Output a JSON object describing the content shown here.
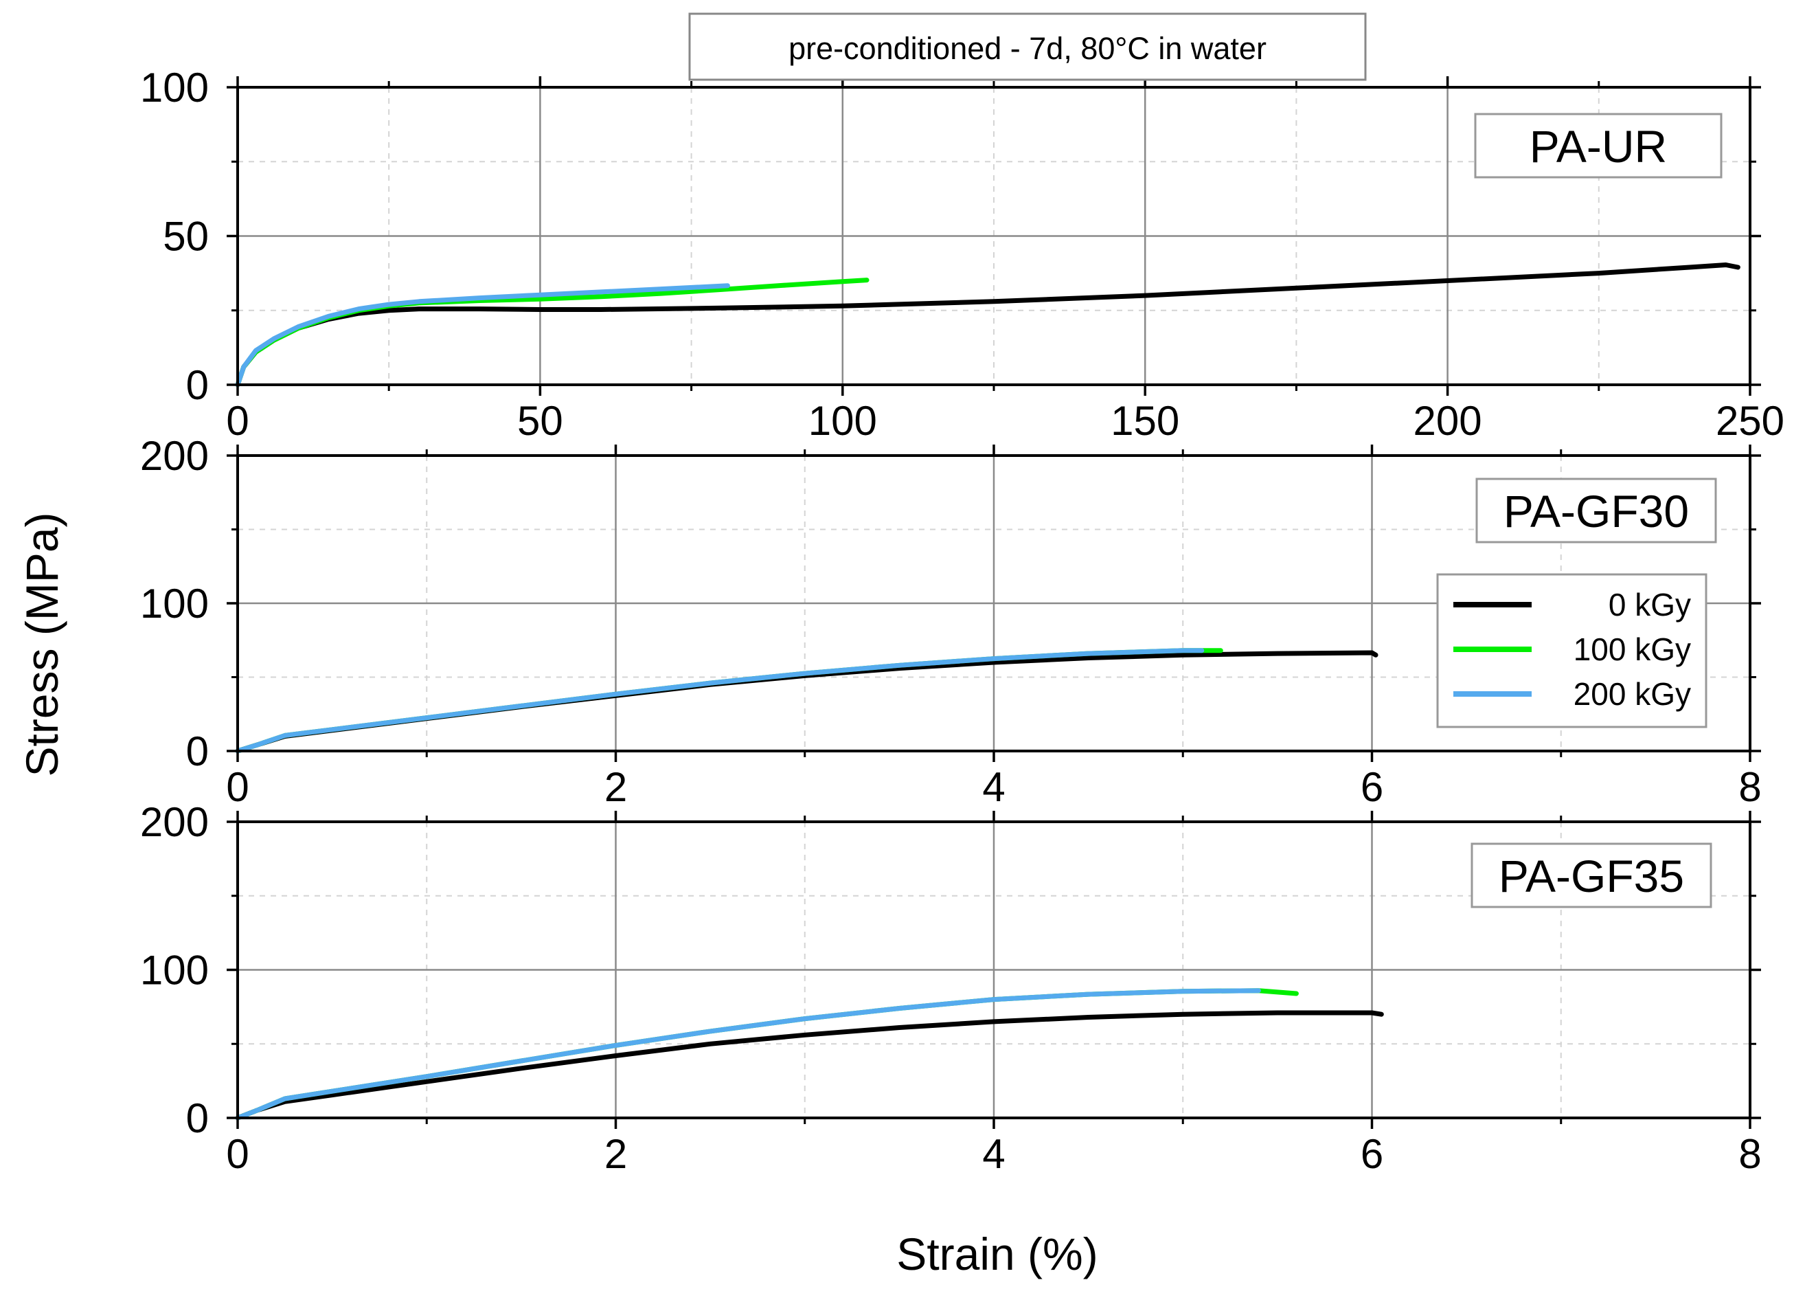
{
  "figure": {
    "header": "pre-conditioned - 7d, 80°C in water",
    "ylabel": "Stress (MPa)",
    "xlabel": "Strain (%)"
  },
  "legend": [
    {
      "label": "0 kGy",
      "color": "#000000"
    },
    {
      "label": "100 kGy",
      "color": "#00ee00"
    },
    {
      "label": "200 kGy",
      "color": "#55aaee"
    }
  ],
  "chart_data": [
    {
      "type": "line",
      "title": "PA-UR",
      "xlim": [
        0,
        250
      ],
      "ylim": [
        0,
        100
      ],
      "xticks": [
        0,
        50,
        100,
        150,
        200,
        250
      ],
      "yticks": [
        0,
        50,
        100
      ],
      "xtick_labels": [
        "0",
        "50",
        "100",
        "150",
        "200",
        "250"
      ],
      "ytick_labels": [
        "0",
        "50",
        "100"
      ],
      "series": [
        {
          "name": "0 kGy",
          "x": [
            0,
            1,
            3,
            6,
            10,
            15,
            20,
            25,
            30,
            40,
            50,
            60,
            80,
            100,
            125,
            150,
            175,
            200,
            225,
            240,
            246,
            248
          ],
          "y": [
            0,
            6,
            11,
            15,
            19,
            22,
            24,
            25,
            25.5,
            25.5,
            25.3,
            25.3,
            25.8,
            26.5,
            28,
            30,
            32.5,
            35,
            37.5,
            39.5,
            40.3,
            39.5
          ]
        },
        {
          "name": "100 kGy",
          "x": [
            0,
            1,
            3,
            6,
            10,
            15,
            20,
            25,
            30,
            40,
            50,
            60,
            70,
            80,
            90,
            100,
            104
          ],
          "y": [
            0,
            6,
            11,
            15,
            19,
            22.5,
            25,
            26.5,
            27.5,
            28.3,
            28.8,
            29.6,
            30.7,
            32,
            33.4,
            34.7,
            35.2
          ]
        },
        {
          "name": "200 kGy",
          "x": [
            0,
            1,
            3,
            6,
            10,
            15,
            20,
            25,
            30,
            40,
            50,
            60,
            70,
            81
          ],
          "y": [
            0,
            6,
            11.5,
            15.5,
            19.5,
            23,
            25.5,
            27,
            28,
            29.2,
            30.2,
            31.2,
            32.2,
            33.3
          ]
        }
      ]
    },
    {
      "type": "line",
      "title": "PA-GF30",
      "xlim": [
        0,
        8
      ],
      "ylim": [
        0,
        200
      ],
      "xticks": [
        0,
        2,
        4,
        6,
        8
      ],
      "yticks": [
        0,
        100,
        200
      ],
      "xtick_labels": [
        "0",
        "2",
        "4",
        "6",
        "8"
      ],
      "ytick_labels": [
        "0",
        "100",
        "200"
      ],
      "series": [
        {
          "name": "0 kGy",
          "x": [
            0,
            0.1,
            0.25,
            0.5,
            1,
            1.5,
            2,
            2.5,
            3,
            3.5,
            4,
            4.5,
            5,
            5.5,
            6,
            6.02
          ],
          "y": [
            0,
            4,
            10,
            14,
            22,
            30,
            37.5,
            45,
            51,
            56,
            60,
            63,
            65,
            66,
            66.5,
            65
          ]
        },
        {
          "name": "100 kGy",
          "x": [
            0,
            0.1,
            0.25,
            0.5,
            1,
            1.5,
            2,
            2.5,
            3,
            3.5,
            4,
            4.5,
            5,
            5.2
          ],
          "y": [
            0,
            4,
            10.5,
            14.5,
            22.5,
            30.5,
            38.5,
            46,
            52.5,
            58,
            62.5,
            66,
            68,
            68
          ]
        },
        {
          "name": "200 kGy",
          "x": [
            0,
            0.1,
            0.25,
            0.5,
            1,
            1.5,
            2,
            2.5,
            3,
            3.5,
            4,
            4.5,
            5,
            5.1
          ],
          "y": [
            0,
            4,
            10.5,
            14.5,
            22.5,
            30.5,
            38.5,
            46,
            52.5,
            58,
            62.5,
            66,
            68,
            68
          ]
        }
      ]
    },
    {
      "type": "line",
      "title": "PA-GF35",
      "xlim": [
        0,
        8
      ],
      "ylim": [
        0,
        200
      ],
      "xticks": [
        0,
        2,
        4,
        6,
        8
      ],
      "yticks": [
        0,
        100,
        200
      ],
      "xtick_labels": [
        "0",
        "2",
        "4",
        "6",
        "8"
      ],
      "ytick_labels": [
        "0",
        "100",
        "200"
      ],
      "series": [
        {
          "name": "0 kGy",
          "x": [
            0,
            0.1,
            0.25,
            0.5,
            1,
            1.5,
            2,
            2.5,
            3,
            3.5,
            4,
            4.5,
            5,
            5.5,
            6,
            6.05
          ],
          "y": [
            0,
            5,
            11,
            15.5,
            24.5,
            33.5,
            42,
            50,
            56,
            61,
            65,
            68,
            70,
            71,
            71,
            70
          ]
        },
        {
          "name": "100 kGy",
          "x": [
            0,
            0.1,
            0.25,
            0.5,
            1,
            1.5,
            2,
            2.5,
            3,
            3.5,
            4,
            4.5,
            5,
            5.4,
            5.6
          ],
          "y": [
            0,
            5,
            13,
            18,
            28,
            38.5,
            49,
            58.5,
            67,
            74,
            80,
            83.5,
            85.5,
            86,
            84
          ]
        },
        {
          "name": "200 kGy",
          "x": [
            0,
            0.1,
            0.25,
            0.5,
            1,
            1.5,
            2,
            2.5,
            3,
            3.5,
            4,
            4.5,
            5,
            5.4
          ],
          "y": [
            0,
            5,
            13,
            18,
            28,
            38.5,
            49,
            58.5,
            67,
            74,
            80,
            83.5,
            85.5,
            86
          ]
        }
      ]
    }
  ]
}
